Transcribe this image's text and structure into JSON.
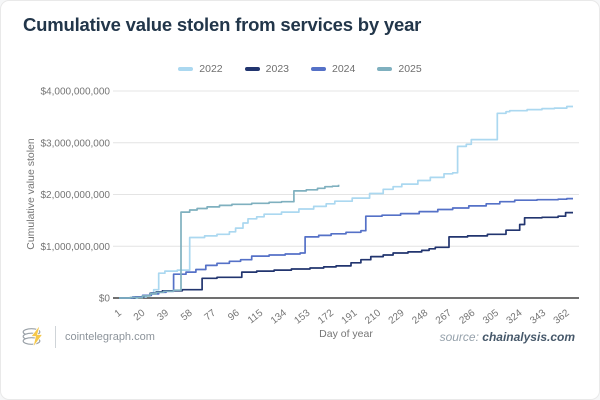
{
  "title": "Cumulative value stolen from services by year",
  "footer": {
    "site": "cointelegraph.com",
    "source_label": "source:",
    "source_value": "chainalysis.com",
    "logo": "cointelegraph-coin-bolt-logo",
    "logo_bolt_color": "#f5c84b",
    "logo_coin_color": "#99a0a7"
  },
  "colors": {
    "title_text": "#22364a",
    "axis_text": "#757575",
    "gridline": "#e4e4e4",
    "zero_axis_line": "#414141",
    "background": "#ffffff"
  },
  "chart_data": {
    "type": "line",
    "step_interpolation": true,
    "title": "Cumulative value stolen from services by year",
    "xlabel": "Day of year",
    "ylabel": "Cumulative value stolen",
    "legend_position": "top",
    "grid": "horizontal-only",
    "units": "USD, cumulative, billions",
    "xlim": [
      1,
      367
    ],
    "ylim_billions": [
      0,
      4.3
    ],
    "x_ticks": [
      1,
      20,
      39,
      58,
      77,
      96,
      115,
      134,
      153,
      172,
      191,
      210,
      229,
      248,
      267,
      286,
      305,
      324,
      343,
      362
    ],
    "y_ticks": [
      {
        "label": "$0",
        "billions": 0
      },
      {
        "label": "$1,000,000,000",
        "billions": 1
      },
      {
        "label": "$2,000,000,000",
        "billions": 2
      },
      {
        "label": "$3,000,000,000",
        "billions": 3
      },
      {
        "label": "$4,000,000,000",
        "billions": 4
      }
    ],
    "series": [
      {
        "name": "2022",
        "color": "#abd8f0",
        "final_value_billions": 3.7,
        "extend_to_day": 367,
        "points": [
          [
            1,
            0
          ],
          [
            16,
            0.02
          ],
          [
            23,
            0.05
          ],
          [
            27,
            0.1
          ],
          [
            29,
            0.16
          ],
          [
            33,
            0.48
          ],
          [
            38,
            0.52
          ],
          [
            48,
            0.54
          ],
          [
            58,
            1.17
          ],
          [
            70,
            1.2
          ],
          [
            80,
            1.23
          ],
          [
            90,
            1.28
          ],
          [
            95,
            1.35
          ],
          [
            101,
            1.45
          ],
          [
            105,
            1.53
          ],
          [
            112,
            1.57
          ],
          [
            118,
            1.62
          ],
          [
            132,
            1.66
          ],
          [
            146,
            1.72
          ],
          [
            158,
            1.77
          ],
          [
            168,
            1.82
          ],
          [
            175,
            1.87
          ],
          [
            189,
            1.93
          ],
          [
            203,
            2.02
          ],
          [
            214,
            2.1
          ],
          [
            222,
            2.15
          ],
          [
            229,
            2.2
          ],
          [
            242,
            2.27
          ],
          [
            252,
            2.33
          ],
          [
            263,
            2.4
          ],
          [
            270,
            2.42
          ],
          [
            274,
            2.93
          ],
          [
            281,
            2.97
          ],
          [
            285,
            3.06
          ],
          [
            306,
            3.57
          ],
          [
            313,
            3.6
          ],
          [
            316,
            3.62
          ],
          [
            330,
            3.64
          ],
          [
            342,
            3.66
          ],
          [
            352,
            3.67
          ],
          [
            362,
            3.7
          ]
        ]
      },
      {
        "name": "2023",
        "color": "#22356f",
        "final_value_billions": 1.65,
        "extend_to_day": 367,
        "points": [
          [
            1,
            0
          ],
          [
            14,
            0.02
          ],
          [
            21,
            0.05
          ],
          [
            26,
            0.09
          ],
          [
            31,
            0.12
          ],
          [
            36,
            0.14
          ],
          [
            52,
            0.16
          ],
          [
            68,
            0.38
          ],
          [
            80,
            0.4
          ],
          [
            100,
            0.5
          ],
          [
            112,
            0.52
          ],
          [
            126,
            0.54
          ],
          [
            140,
            0.56
          ],
          [
            155,
            0.58
          ],
          [
            166,
            0.6
          ],
          [
            176,
            0.62
          ],
          [
            188,
            0.68
          ],
          [
            196,
            0.74
          ],
          [
            204,
            0.8
          ],
          [
            214,
            0.83
          ],
          [
            222,
            0.87
          ],
          [
            234,
            0.89
          ],
          [
            245,
            0.92
          ],
          [
            251,
            0.95
          ],
          [
            256,
            0.98
          ],
          [
            267,
            1.18
          ],
          [
            282,
            1.2
          ],
          [
            298,
            1.23
          ],
          [
            313,
            1.31
          ],
          [
            324,
            1.42
          ],
          [
            328,
            1.55
          ],
          [
            342,
            1.56
          ],
          [
            355,
            1.58
          ],
          [
            361,
            1.65
          ]
        ]
      },
      {
        "name": "2024",
        "color": "#5571c7",
        "final_value_billions": 1.92,
        "extend_to_day": 367,
        "points": [
          [
            1,
            0
          ],
          [
            12,
            0.02
          ],
          [
            20,
            0.05
          ],
          [
            27,
            0.08
          ],
          [
            33,
            0.11
          ],
          [
            39,
            0.13
          ],
          [
            45,
            0.46
          ],
          [
            55,
            0.5
          ],
          [
            63,
            0.55
          ],
          [
            71,
            0.63
          ],
          [
            80,
            0.67
          ],
          [
            90,
            0.71
          ],
          [
            99,
            0.74
          ],
          [
            108,
            0.81
          ],
          [
            122,
            0.83
          ],
          [
            135,
            0.85
          ],
          [
            147,
            0.87
          ],
          [
            151,
            1.18
          ],
          [
            162,
            1.21
          ],
          [
            172,
            1.24
          ],
          [
            184,
            1.27
          ],
          [
            196,
            1.3
          ],
          [
            200,
            1.58
          ],
          [
            213,
            1.6
          ],
          [
            228,
            1.63
          ],
          [
            243,
            1.67
          ],
          [
            258,
            1.71
          ],
          [
            270,
            1.74
          ],
          [
            283,
            1.78
          ],
          [
            297,
            1.82
          ],
          [
            308,
            1.86
          ],
          [
            320,
            1.89
          ],
          [
            338,
            1.9
          ],
          [
            355,
            1.91
          ],
          [
            362,
            1.92
          ]
        ]
      },
      {
        "name": "2025",
        "color": "#7fb0bf",
        "final_value_billions": 2.19,
        "extend_to_day": null,
        "points": [
          [
            1,
            0
          ],
          [
            10,
            0.01
          ],
          [
            20,
            0.04
          ],
          [
            26,
            0.08
          ],
          [
            31,
            0.11
          ],
          [
            37,
            0.13
          ],
          [
            45,
            0.15
          ],
          [
            51,
            1.66
          ],
          [
            58,
            1.7
          ],
          [
            64,
            1.73
          ],
          [
            72,
            1.76
          ],
          [
            82,
            1.79
          ],
          [
            92,
            1.81
          ],
          [
            108,
            1.83
          ],
          [
            122,
            1.85
          ],
          [
            132,
            1.86
          ],
          [
            142,
            2.07
          ],
          [
            152,
            2.09
          ],
          [
            161,
            2.12
          ],
          [
            167,
            2.15
          ],
          [
            173,
            2.16
          ],
          [
            178,
            2.19
          ]
        ]
      }
    ]
  }
}
